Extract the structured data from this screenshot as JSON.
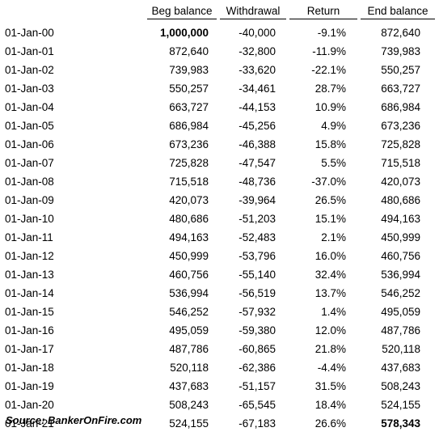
{
  "headers": {
    "beg_balance": "Beg balance",
    "withdrawal": "Withdrawal",
    "return": "Return",
    "end_balance": "End balance"
  },
  "rows": [
    {
      "date": "01-Jan-00",
      "beg": "1,000,000",
      "withdrawal": "-40,000",
      "return": "-9.1%",
      "end": "872,640",
      "beg_bold": true,
      "end_bold": false
    },
    {
      "date": "01-Jan-01",
      "beg": "872,640",
      "withdrawal": "-32,800",
      "return": "-11.9%",
      "end": "739,983",
      "beg_bold": false,
      "end_bold": false
    },
    {
      "date": "01-Jan-02",
      "beg": "739,983",
      "withdrawal": "-33,620",
      "return": "-22.1%",
      "end": "550,257",
      "beg_bold": false,
      "end_bold": false
    },
    {
      "date": "01-Jan-03",
      "beg": "550,257",
      "withdrawal": "-34,461",
      "return": "28.7%",
      "end": "663,727",
      "beg_bold": false,
      "end_bold": false
    },
    {
      "date": "01-Jan-04",
      "beg": "663,727",
      "withdrawal": "-44,153",
      "return": "10.9%",
      "end": "686,984",
      "beg_bold": false,
      "end_bold": false
    },
    {
      "date": "01-Jan-05",
      "beg": "686,984",
      "withdrawal": "-45,256",
      "return": "4.9%",
      "end": "673,236",
      "beg_bold": false,
      "end_bold": false
    },
    {
      "date": "01-Jan-06",
      "beg": "673,236",
      "withdrawal": "-46,388",
      "return": "15.8%",
      "end": "725,828",
      "beg_bold": false,
      "end_bold": false
    },
    {
      "date": "01-Jan-07",
      "beg": "725,828",
      "withdrawal": "-47,547",
      "return": "5.5%",
      "end": "715,518",
      "beg_bold": false,
      "end_bold": false
    },
    {
      "date": "01-Jan-08",
      "beg": "715,518",
      "withdrawal": "-48,736",
      "return": "-37.0%",
      "end": "420,073",
      "beg_bold": false,
      "end_bold": false
    },
    {
      "date": "01-Jan-09",
      "beg": "420,073",
      "withdrawal": "-39,964",
      "return": "26.5%",
      "end": "480,686",
      "beg_bold": false,
      "end_bold": false
    },
    {
      "date": "01-Jan-10",
      "beg": "480,686",
      "withdrawal": "-51,203",
      "return": "15.1%",
      "end": "494,163",
      "beg_bold": false,
      "end_bold": false
    },
    {
      "date": "01-Jan-11",
      "beg": "494,163",
      "withdrawal": "-52,483",
      "return": "2.1%",
      "end": "450,999",
      "beg_bold": false,
      "end_bold": false
    },
    {
      "date": "01-Jan-12",
      "beg": "450,999",
      "withdrawal": "-53,796",
      "return": "16.0%",
      "end": "460,756",
      "beg_bold": false,
      "end_bold": false
    },
    {
      "date": "01-Jan-13",
      "beg": "460,756",
      "withdrawal": "-55,140",
      "return": "32.4%",
      "end": "536,994",
      "beg_bold": false,
      "end_bold": false
    },
    {
      "date": "01-Jan-14",
      "beg": "536,994",
      "withdrawal": "-56,519",
      "return": "13.7%",
      "end": "546,252",
      "beg_bold": false,
      "end_bold": false
    },
    {
      "date": "01-Jan-15",
      "beg": "546,252",
      "withdrawal": "-57,932",
      "return": "1.4%",
      "end": "495,059",
      "beg_bold": false,
      "end_bold": false
    },
    {
      "date": "01-Jan-16",
      "beg": "495,059",
      "withdrawal": "-59,380",
      "return": "12.0%",
      "end": "487,786",
      "beg_bold": false,
      "end_bold": false
    },
    {
      "date": "01-Jan-17",
      "beg": "487,786",
      "withdrawal": "-60,865",
      "return": "21.8%",
      "end": "520,118",
      "beg_bold": false,
      "end_bold": false
    },
    {
      "date": "01-Jan-18",
      "beg": "520,118",
      "withdrawal": "-62,386",
      "return": "-4.4%",
      "end": "437,683",
      "beg_bold": false,
      "end_bold": false
    },
    {
      "date": "01-Jan-19",
      "beg": "437,683",
      "withdrawal": "-51,157",
      "return": "31.5%",
      "end": "508,243",
      "beg_bold": false,
      "end_bold": false
    },
    {
      "date": "01-Jan-20",
      "beg": "508,243",
      "withdrawal": "-65,545",
      "return": "18.4%",
      "end": "524,155",
      "beg_bold": false,
      "end_bold": false
    },
    {
      "date": "01-Jan-21",
      "beg": "524,155",
      "withdrawal": "-67,183",
      "return": "26.6%",
      "end": "578,343",
      "beg_bold": false,
      "end_bold": true
    }
  ],
  "source": "Source: BankerOnFire.com"
}
